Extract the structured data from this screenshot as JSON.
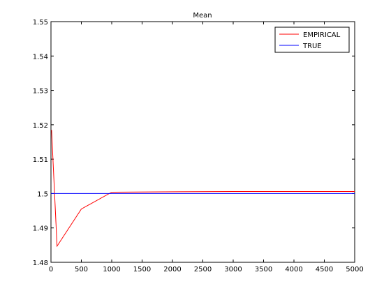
{
  "chart_data": {
    "type": "line",
    "title": "Mean",
    "xlabel": "",
    "ylabel": "",
    "xlim": [
      0,
      5000
    ],
    "ylim": [
      1.48,
      1.55
    ],
    "xticks": [
      0,
      500,
      1000,
      1500,
      2000,
      2500,
      3000,
      3500,
      4000,
      4500,
      5000
    ],
    "xtick_labels": [
      "0",
      "500",
      "1000",
      "1500",
      "2000",
      "2500",
      "3000",
      "3500",
      "4000",
      "4500",
      "5000"
    ],
    "yticks": [
      1.48,
      1.49,
      1.5,
      1.51,
      1.52,
      1.53,
      1.54,
      1.55
    ],
    "ytick_labels": [
      "1.48",
      "1.49",
      "1.5",
      "1.51",
      "1.52",
      "1.53",
      "1.54",
      "1.55"
    ],
    "grid": false,
    "legend_position": "top-right",
    "series": [
      {
        "name": "EMPIRICAL",
        "color": "#ff0000",
        "x": [
          10,
          100,
          500,
          1000,
          3000,
          5000
        ],
        "y": [
          1.5185,
          1.4847,
          1.4955,
          1.5004,
          1.5006,
          1.5006
        ]
      },
      {
        "name": "TRUE",
        "color": "#0000ff",
        "x": [
          0,
          5000
        ],
        "y": [
          1.5,
          1.5
        ]
      }
    ]
  }
}
